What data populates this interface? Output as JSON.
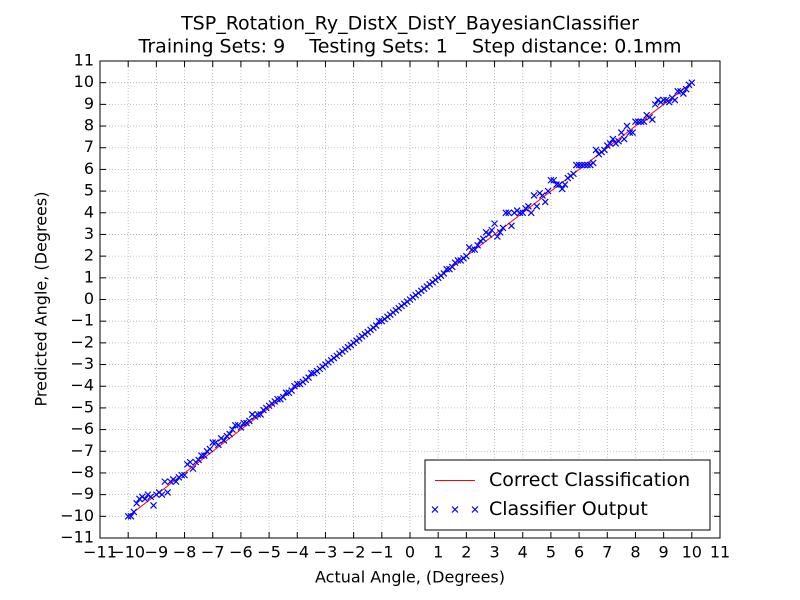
{
  "chart_data": {
    "type": "scatter",
    "title": "TSP_Rotation_Ry_DistX_DistY_BayesianClassifier",
    "subtitle": "Training Sets: 9    Testing Sets: 1    Step distance: 0.1mm",
    "x_label": "Actual Angle, (Degrees)",
    "y_label": "Predicted Angle, (Degrees)",
    "xlim": [
      -11,
      11
    ],
    "ylim": [
      -11,
      11
    ],
    "xticks": [
      {
        "value": -11,
        "label": "−11"
      },
      {
        "value": -10,
        "label": "−10"
      },
      {
        "value": -9,
        "label": "−9"
      },
      {
        "value": -8,
        "label": "−8"
      },
      {
        "value": -7,
        "label": "−7"
      },
      {
        "value": -6,
        "label": "−6"
      },
      {
        "value": -5,
        "label": "−5"
      },
      {
        "value": -4,
        "label": "−4"
      },
      {
        "value": -3,
        "label": "−3"
      },
      {
        "value": -2,
        "label": "−2"
      },
      {
        "value": -1,
        "label": "−1"
      },
      0,
      1,
      2,
      3,
      4,
      5,
      6,
      7,
      8,
      9,
      10,
      11
    ],
    "yticks": [
      {
        "value": -11,
        "label": "−11"
      },
      {
        "value": -10,
        "label": "−10"
      },
      {
        "value": -9,
        "label": "−9"
      },
      {
        "value": -8,
        "label": "−8"
      },
      {
        "value": -7,
        "label": "−7"
      },
      {
        "value": -6,
        "label": "−6"
      },
      {
        "value": -5,
        "label": "−5"
      },
      {
        "value": -4,
        "label": "−4"
      },
      {
        "value": -3,
        "label": "−3"
      },
      {
        "value": -2,
        "label": "−2"
      },
      {
        "value": -1,
        "label": "−1"
      },
      0,
      1,
      2,
      3,
      4,
      5,
      6,
      7,
      8,
      9,
      10,
      11
    ],
    "grid": true,
    "legend": "lower right",
    "series": [
      {
        "name": "Correct Classification",
        "style": "line",
        "color": "#ff0000",
        "x": [
          -10,
          10
        ],
        "values": [
          -10,
          10
        ]
      },
      {
        "name": "Classifier Output",
        "style": "marker",
        "color": "#0000ff",
        "x": [
          -10,
          -9.9,
          -9.8,
          -9.7,
          -9.6,
          -9.5,
          -9.4,
          -9.3,
          -9.2,
          -9.1,
          -9,
          -8.9,
          -8.8,
          -8.7,
          -8.6,
          -8.5,
          -8.4,
          -8.3,
          -8.2,
          -8.1,
          -8,
          -7.9,
          -7.8,
          -7.7,
          -7.6,
          -7.5,
          -7.4,
          -7.3,
          -7.2,
          -7.1,
          -7,
          -6.9,
          -6.8,
          -6.7,
          -6.6,
          -6.5,
          -6.4,
          -6.3,
          -6.2,
          -6.1,
          -6,
          -5.9,
          -5.8,
          -5.7,
          -5.6,
          -5.5,
          -5.4,
          -5.3,
          -5.2,
          -5.1,
          -5,
          -4.9,
          -4.8,
          -4.7,
          -4.6,
          -4.5,
          -4.4,
          -4.3,
          -4.2,
          -4.1,
          -4,
          -3.9,
          -3.8,
          -3.7,
          -3.6,
          -3.5,
          -3.4,
          -3.3,
          -3.2,
          -3.1,
          -3,
          -2.9,
          -2.8,
          -2.7,
          -2.6,
          -2.5,
          -2.4,
          -2.3,
          -2.2,
          -2.1,
          -2,
          -1.9,
          -1.8,
          -1.7,
          -1.6,
          -1.5,
          -1.4,
          -1.3,
          -1.2,
          -1.1,
          -1,
          -0.9,
          -0.8,
          -0.7,
          -0.6,
          -0.5,
          -0.4,
          -0.3,
          -0.2,
          -0.1,
          0,
          0.1,
          0.2,
          0.3,
          0.4,
          0.5,
          0.6,
          0.7,
          0.8,
          0.9,
          1,
          1.1,
          1.2,
          1.3,
          1.4,
          1.5,
          1.6,
          1.7,
          1.8,
          1.9,
          2,
          2.1,
          2.2,
          2.3,
          2.4,
          2.5,
          2.6,
          2.7,
          2.8,
          2.9,
          3,
          3.1,
          3.2,
          3.3,
          3.4,
          3.5,
          3.6,
          3.7,
          3.8,
          3.9,
          4,
          4.1,
          4.2,
          4.3,
          4.4,
          4.5,
          4.6,
          4.7,
          4.8,
          4.9,
          5,
          5.1,
          5.2,
          5.3,
          5.4,
          5.5,
          5.6,
          5.7,
          5.8,
          5.9,
          6,
          6.1,
          6.2,
          6.3,
          6.4,
          6.5,
          6.6,
          6.7,
          6.8,
          6.9,
          7,
          7.1,
          7.2,
          7.3,
          7.4,
          7.5,
          7.6,
          7.7,
          7.8,
          7.9,
          8,
          8.1,
          8.2,
          8.3,
          8.4,
          8.5,
          8.6,
          8.7,
          8.8,
          8.9,
          9,
          9.1,
          9.2,
          9.3,
          9.4,
          9.5,
          9.6,
          9.7,
          9.8,
          9.9,
          10
        ],
        "values": [
          -10,
          -10,
          -9.8,
          -9.4,
          -9.2,
          -9.1,
          -9.2,
          -9.0,
          -9.1,
          -9.5,
          -9.0,
          -8.9,
          -9.0,
          -8.4,
          -8.9,
          -8.4,
          -8.3,
          -8.4,
          -8.2,
          -8.1,
          -8.1,
          -7.6,
          -7.5,
          -7.8,
          -7.5,
          -7.4,
          -7.2,
          -7.2,
          -7.0,
          -6.9,
          -6.6,
          -6.6,
          -6.7,
          -6.4,
          -6.5,
          -6.3,
          -6.2,
          -6.0,
          -5.8,
          -5.8,
          -5.9,
          -5.7,
          -5.7,
          -5.6,
          -5.3,
          -5.4,
          -5.3,
          -5.3,
          -5.1,
          -5.0,
          -4.9,
          -4.8,
          -4.7,
          -4.6,
          -4.6,
          -4.5,
          -4.3,
          -4.3,
          -4.2,
          -4.0,
          -3.9,
          -3.9,
          -3.8,
          -3.7,
          -3.6,
          -3.4,
          -3.4,
          -3.3,
          -3.2,
          -3.1,
          -3.0,
          -2.9,
          -2.8,
          -2.7,
          -2.6,
          -2.5,
          -2.4,
          -2.3,
          -2.2,
          -2.1,
          -2.0,
          -1.9,
          -1.8,
          -1.7,
          -1.6,
          -1.5,
          -1.4,
          -1.3,
          -1.2,
          -1.0,
          -1.0,
          -0.9,
          -0.8,
          -0.7,
          -0.6,
          -0.5,
          -0.4,
          -0.3,
          -0.2,
          -0.1,
          0.0,
          0.1,
          0.2,
          0.3,
          0.4,
          0.5,
          0.6,
          0.7,
          0.8,
          0.9,
          1.0,
          1.1,
          1.2,
          1.4,
          1.4,
          1.5,
          1.7,
          1.8,
          1.8,
          1.9,
          2.0,
          2.4,
          2.3,
          2.3,
          2.5,
          2.7,
          2.8,
          3.1,
          3.0,
          3.2,
          3.5,
          2.9,
          3.1,
          3.3,
          4.0,
          4.0,
          3.4,
          4.0,
          4.1,
          4.0,
          4.0,
          4.2,
          4.3,
          4.0,
          4.8,
          4.3,
          4.9,
          4.8,
          4.5,
          5.0,
          5.5,
          5.5,
          5.3,
          5.3,
          5.1,
          5.3,
          5.6,
          5.7,
          5.8,
          6.2,
          6.2,
          6.2,
          6.2,
          6.2,
          6.2,
          6.3,
          6.9,
          6.7,
          6.8,
          6.9,
          7.1,
          7.2,
          7.4,
          7.2,
          7.3,
          7.7,
          7.4,
          8.0,
          7.7,
          7.7,
          8.2,
          8.2,
          8.2,
          8.2,
          8.5,
          8.4,
          8.3,
          9.0,
          9.2,
          9.1,
          9.2,
          9.2,
          9.1,
          9.3,
          9.2,
          9.6,
          9.6,
          9.5,
          9.7,
          9.9,
          10.0
        ]
      }
    ]
  }
}
